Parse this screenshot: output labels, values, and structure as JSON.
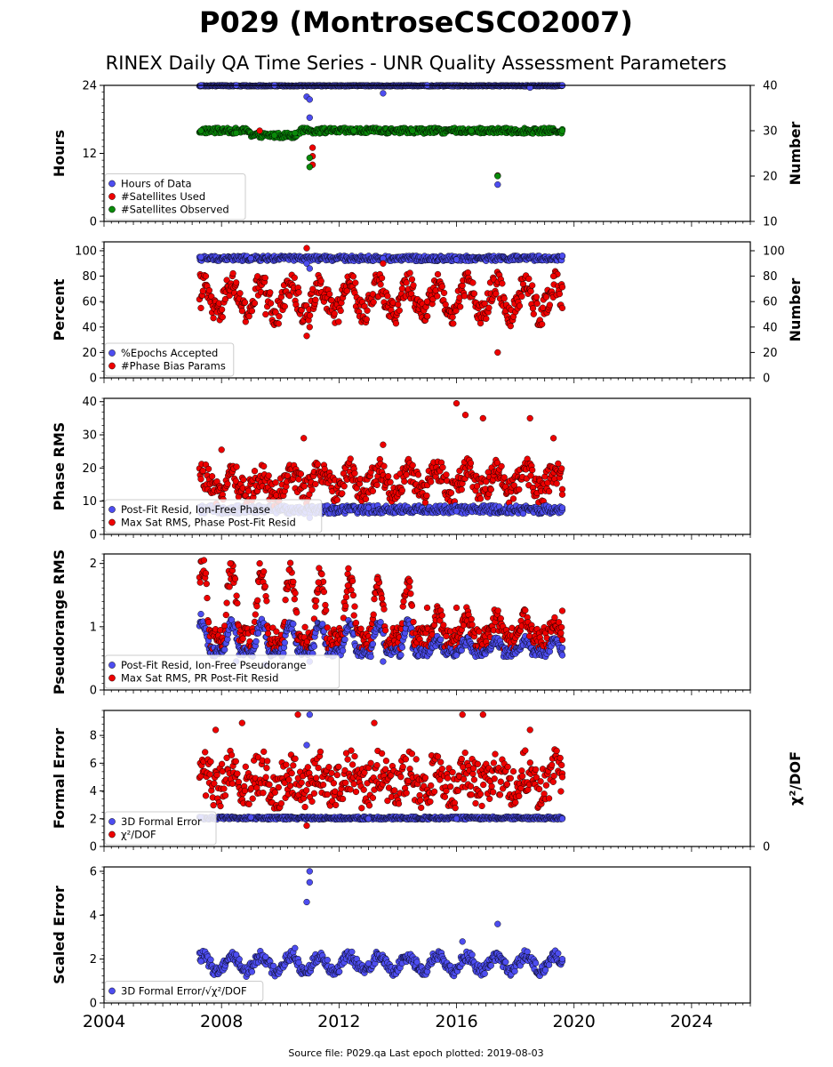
{
  "title": "P029 (MontroseCSCO2007)",
  "subtitle": "RINEX Daily QA Time Series - UNR Quality Assessment Parameters",
  "footer": "Source file: P029.qa Last epoch plotted: 2019-08-03",
  "colors": {
    "blue": "#4d4df0",
    "red": "#ee0000",
    "green": "#0a8a0a",
    "edge": "#000000"
  },
  "chart_data": [
    {
      "type": "scatter",
      "ylabel": "Hours",
      "ylabel_right": "Number",
      "ylim": [
        0,
        24
      ],
      "yticks": [
        "0",
        "12",
        "24"
      ],
      "ylim_right": [
        10,
        40
      ],
      "yticks_right": [
        "10",
        "20",
        "30",
        "40"
      ],
      "xlim": [
        2004,
        2026
      ],
      "legend_position": "lower-left",
      "series": [
        {
          "name": "Hours of Data",
          "color": "blue",
          "axis": "left",
          "values": [
            [
              2007.3,
              24
            ],
            [
              2008.5,
              24
            ],
            [
              2009.8,
              24
            ],
            [
              2010.9,
              22
            ],
            [
              2011.0,
              21.5
            ],
            [
              2011.0,
              18.3
            ],
            [
              2013.5,
              22.6
            ],
            [
              2015.0,
              24
            ],
            [
              2017.4,
              6.5
            ],
            [
              2018.5,
              23.6
            ],
            [
              2019.6,
              24
            ]
          ]
        },
        {
          "name": "#Satellites Used",
          "color": "red",
          "axis": "left",
          "values": [
            [
              2009.3,
              16
            ],
            [
              2011.1,
              13
            ],
            [
              2011.1,
              10
            ],
            [
              2011.1,
              11.5
            ],
            [
              2017.4,
              8.1
            ]
          ]
        },
        {
          "name": "#Satellites Observed",
          "color": "green",
          "axis": "right",
          "values": [
            [
              2007.3,
              30
            ],
            [
              2008.5,
              29.5
            ],
            [
              2009.8,
              29
            ],
            [
              2010.5,
              29.5
            ],
            [
              2011.0,
              24
            ],
            [
              2011.0,
              22
            ],
            [
              2012.5,
              30
            ],
            [
              2014.5,
              30
            ],
            [
              2016.5,
              30
            ],
            [
              2017.4,
              20
            ],
            [
              2019.6,
              30
            ]
          ]
        }
      ]
    },
    {
      "type": "scatter",
      "ylabel": "Percent",
      "ylabel_right": "Number",
      "ylim": [
        0,
        107
      ],
      "yticks": [
        "0",
        "20",
        "40",
        "60",
        "80",
        "100"
      ],
      "yticks_right": [
        "0",
        "20",
        "40",
        "60",
        "80",
        "100"
      ],
      "xlim": [
        2004,
        2026
      ],
      "legend_position": "lower-left",
      "series": [
        {
          "name": "%Epochs Accepted",
          "color": "blue",
          "axis": "left",
          "values": [
            [
              2007.3,
              95
            ],
            [
              2009.0,
              94
            ],
            [
              2010.9,
              90
            ],
            [
              2011.0,
              86
            ],
            [
              2013.5,
              94
            ],
            [
              2016.0,
              93
            ],
            [
              2019.6,
              96
            ]
          ]
        },
        {
          "name": "#Phase Bias Params",
          "color": "red",
          "axis": "right",
          "values": [
            [
              2007.3,
              55
            ],
            [
              2008.5,
              75
            ],
            [
              2009.5,
              50
            ],
            [
              2010.9,
              102
            ],
            [
              2010.9,
              33
            ],
            [
              2011.0,
              40
            ],
            [
              2013.5,
              90
            ],
            [
              2015.0,
              60
            ],
            [
              2017.4,
              20
            ],
            [
              2019.3,
              80
            ],
            [
              2019.6,
              55
            ]
          ]
        }
      ]
    },
    {
      "type": "scatter",
      "ylabel": "Phase RMS",
      "ylim": [
        0,
        41
      ],
      "yticks": [
        "0",
        "10",
        "20",
        "30",
        "40"
      ],
      "xlim": [
        2004,
        2026
      ],
      "legend_position": "lower-left",
      "series": [
        {
          "name": "Post-Fit Resid, Ion-Free Phase",
          "color": "blue",
          "values": [
            [
              2007.3,
              8
            ],
            [
              2009.0,
              8
            ],
            [
              2011.0,
              5
            ],
            [
              2013.0,
              8
            ],
            [
              2016.0,
              7
            ],
            [
              2019.6,
              8
            ]
          ]
        },
        {
          "name": "Max Sat RMS, Phase Post-Fit Resid",
          "color": "red",
          "values": [
            [
              2008.0,
              25.5
            ],
            [
              2010.8,
              29
            ],
            [
              2013.5,
              27
            ],
            [
              2016.0,
              39.5
            ],
            [
              2016.3,
              36
            ],
            [
              2016.9,
              35
            ],
            [
              2018.5,
              35
            ],
            [
              2019.3,
              29
            ],
            [
              2019.6,
              12
            ]
          ]
        }
      ]
    },
    {
      "type": "scatter",
      "ylabel": "Pseudorange RMS",
      "ylim": [
        0,
        2.15
      ],
      "yticks": [
        "0",
        "1",
        "2"
      ],
      "xlim": [
        2004,
        2026
      ],
      "legend_position": "lower-left",
      "series": [
        {
          "name": "Post-Fit Resid, Ion-Free Pseudorange",
          "color": "blue",
          "values": [
            [
              2007.3,
              1.2
            ],
            [
              2008.5,
              0.45
            ],
            [
              2009.5,
              0.4
            ],
            [
              2011.0,
              0.45
            ],
            [
              2013.5,
              0.45
            ],
            [
              2016.0,
              0.55
            ],
            [
              2019.6,
              0.55
            ]
          ]
        },
        {
          "name": "Max Sat RMS, PR Post-Fit Resid",
          "color": "red",
          "values": [
            [
              2007.4,
              2.05
            ],
            [
              2008.3,
              2.0
            ],
            [
              2009.3,
              2.0
            ],
            [
              2010.3,
              1.9
            ],
            [
              2011.3,
              1.7
            ],
            [
              2012.3,
              1.65
            ],
            [
              2013.3,
              1.75
            ],
            [
              2015.0,
              1.3
            ],
            [
              2016.0,
              1.3
            ],
            [
              2019.6,
              1.25
            ]
          ]
        }
      ]
    },
    {
      "type": "scatter",
      "ylabel": "Formal Error",
      "ylabel_right": "χ²/DOF",
      "ylim": [
        0,
        9.8
      ],
      "yticks": [
        "0",
        "2",
        "4",
        "6",
        "8"
      ],
      "yticks_right": [
        "0"
      ],
      "xlim": [
        2004,
        2026
      ],
      "legend_position": "lower-left",
      "series": [
        {
          "name": "3D Formal Error",
          "color": "blue",
          "values": [
            [
              2007.3,
              2.1
            ],
            [
              2009.0,
              2.1
            ],
            [
              2010.9,
              7.3
            ],
            [
              2011.0,
              9.5
            ],
            [
              2013.0,
              2.0
            ],
            [
              2016.0,
              2.0
            ],
            [
              2019.6,
              2.0
            ]
          ]
        },
        {
          "name": "χ²/DOF",
          "color": "red",
          "values": [
            [
              2007.8,
              8.4
            ],
            [
              2008.7,
              8.9
            ],
            [
              2010.6,
              9.5
            ],
            [
              2010.9,
              1.5
            ],
            [
              2013.2,
              8.9
            ],
            [
              2016.2,
              9.5
            ],
            [
              2016.9,
              9.5
            ],
            [
              2018.5,
              8.4
            ],
            [
              2019.6,
              5.0
            ]
          ]
        }
      ]
    },
    {
      "type": "scatter",
      "ylabel": "Scaled Error",
      "ylim": [
        0,
        6.2
      ],
      "yticks": [
        "0",
        "2",
        "4",
        "6"
      ],
      "xlim": [
        2004,
        2026
      ],
      "xticks": [
        "2004",
        "2008",
        "2012",
        "2016",
        "2020",
        "2024"
      ],
      "legend_position": "lower-left",
      "series": [
        {
          "name": "3D Formal Error/√χ²/DOF",
          "color": "blue",
          "values": [
            [
              2007.3,
              1.9
            ],
            [
              2008.5,
              2.2
            ],
            [
              2009.5,
              2.1
            ],
            [
              2010.5,
              2.5
            ],
            [
              2010.9,
              4.6
            ],
            [
              2011.0,
              6.0
            ],
            [
              2011.0,
              5.5
            ],
            [
              2013.0,
              1.8
            ],
            [
              2016.2,
              2.8
            ],
            [
              2017.4,
              3.6
            ],
            [
              2019.6,
              2.0
            ]
          ]
        }
      ]
    }
  ]
}
